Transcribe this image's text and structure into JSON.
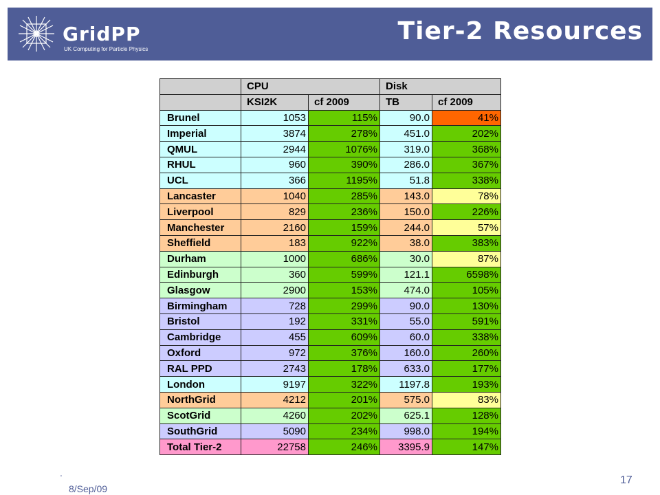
{
  "header": {
    "logo_name": "GridPP",
    "logo_subtitle": "UK Computing for Particle Physics",
    "title": "Tier-2 Resources"
  },
  "table": {
    "group_headers": [
      "CPU",
      "Disk"
    ],
    "sub_headers": [
      "KSI2K",
      "cf 2009",
      "TB",
      "cf 2009"
    ],
    "colors": {
      "cyan": "#ccffff",
      "orange": "#ffcc99",
      "mint": "#ccffcc",
      "lavender": "#ccccff",
      "pink": "#ff99cc",
      "green": "#66cc00",
      "yellow": "#ffff99",
      "red": "#ff6600",
      "header": "#d0d0d0"
    },
    "rows": [
      {
        "site": "Brunel",
        "ksi2k": "1053",
        "cpu_cf": "115%",
        "tb": "90.0",
        "disk_cf": "41%",
        "row_color": "cyan",
        "cpu_cf_color": "green",
        "disk_cf_color": "red"
      },
      {
        "site": "Imperial",
        "ksi2k": "3874",
        "cpu_cf": "278%",
        "tb": "451.0",
        "disk_cf": "202%",
        "row_color": "cyan",
        "cpu_cf_color": "green",
        "disk_cf_color": "green"
      },
      {
        "site": "QMUL",
        "ksi2k": "2944",
        "cpu_cf": "1076%",
        "tb": "319.0",
        "disk_cf": "368%",
        "row_color": "cyan",
        "cpu_cf_color": "green",
        "disk_cf_color": "green"
      },
      {
        "site": "RHUL",
        "ksi2k": "960",
        "cpu_cf": "390%",
        "tb": "286.0",
        "disk_cf": "367%",
        "row_color": "cyan",
        "cpu_cf_color": "green",
        "disk_cf_color": "green"
      },
      {
        "site": "UCL",
        "ksi2k": "366",
        "cpu_cf": "1195%",
        "tb": "51.8",
        "disk_cf": "338%",
        "row_color": "cyan",
        "cpu_cf_color": "green",
        "disk_cf_color": "green"
      },
      {
        "site": "Lancaster",
        "ksi2k": "1040",
        "cpu_cf": "285%",
        "tb": "143.0",
        "disk_cf": "78%",
        "row_color": "orange",
        "cpu_cf_color": "green",
        "disk_cf_color": "yellow"
      },
      {
        "site": "Liverpool",
        "ksi2k": "829",
        "cpu_cf": "236%",
        "tb": "150.0",
        "disk_cf": "226%",
        "row_color": "orange",
        "cpu_cf_color": "green",
        "disk_cf_color": "green"
      },
      {
        "site": "Manchester",
        "ksi2k": "2160",
        "cpu_cf": "159%",
        "tb": "244.0",
        "disk_cf": "57%",
        "row_color": "orange",
        "cpu_cf_color": "green",
        "disk_cf_color": "yellow"
      },
      {
        "site": "Sheffield",
        "ksi2k": "183",
        "cpu_cf": "922%",
        "tb": "38.0",
        "disk_cf": "383%",
        "row_color": "orange",
        "cpu_cf_color": "green",
        "disk_cf_color": "green"
      },
      {
        "site": "Durham",
        "ksi2k": "1000",
        "cpu_cf": "686%",
        "tb": "30.0",
        "disk_cf": "87%",
        "row_color": "mint",
        "cpu_cf_color": "green",
        "disk_cf_color": "yellow"
      },
      {
        "site": "Edinburgh",
        "ksi2k": "360",
        "cpu_cf": "599%",
        "tb": "121.1",
        "disk_cf": "6598%",
        "row_color": "mint",
        "cpu_cf_color": "green",
        "disk_cf_color": "green"
      },
      {
        "site": "Glasgow",
        "ksi2k": "2900",
        "cpu_cf": "153%",
        "tb": "474.0",
        "disk_cf": "105%",
        "row_color": "mint",
        "cpu_cf_color": "green",
        "disk_cf_color": "green"
      },
      {
        "site": "Birmingham",
        "ksi2k": "728",
        "cpu_cf": "299%",
        "tb": "90.0",
        "disk_cf": "130%",
        "row_color": "lavender",
        "cpu_cf_color": "green",
        "disk_cf_color": "green"
      },
      {
        "site": "Bristol",
        "ksi2k": "192",
        "cpu_cf": "331%",
        "tb": "55.0",
        "disk_cf": "591%",
        "row_color": "lavender",
        "cpu_cf_color": "green",
        "disk_cf_color": "green"
      },
      {
        "site": "Cambridge",
        "ksi2k": "455",
        "cpu_cf": "609%",
        "tb": "60.0",
        "disk_cf": "338%",
        "row_color": "lavender",
        "cpu_cf_color": "green",
        "disk_cf_color": "green"
      },
      {
        "site": "Oxford",
        "ksi2k": "972",
        "cpu_cf": "376%",
        "tb": "160.0",
        "disk_cf": "260%",
        "row_color": "lavender",
        "cpu_cf_color": "green",
        "disk_cf_color": "green"
      },
      {
        "site": "RAL PPD",
        "ksi2k": "2743",
        "cpu_cf": "178%",
        "tb": "633.0",
        "disk_cf": "177%",
        "row_color": "lavender",
        "cpu_cf_color": "green",
        "disk_cf_color": "green"
      },
      {
        "site": "London",
        "ksi2k": "9197",
        "cpu_cf": "322%",
        "tb": "1197.8",
        "disk_cf": "193%",
        "row_color": "cyan",
        "cpu_cf_color": "green",
        "disk_cf_color": "green"
      },
      {
        "site": "NorthGrid",
        "ksi2k": "4212",
        "cpu_cf": "201%",
        "tb": "575.0",
        "disk_cf": "83%",
        "row_color": "orange",
        "cpu_cf_color": "green",
        "disk_cf_color": "yellow"
      },
      {
        "site": "ScotGrid",
        "ksi2k": "4260",
        "cpu_cf": "202%",
        "tb": "625.1",
        "disk_cf": "128%",
        "row_color": "mint",
        "cpu_cf_color": "green",
        "disk_cf_color": "green"
      },
      {
        "site": "SouthGrid",
        "ksi2k": "5090",
        "cpu_cf": "234%",
        "tb": "998.0",
        "disk_cf": "194%",
        "row_color": "lavender",
        "cpu_cf_color": "green",
        "disk_cf_color": "green"
      },
      {
        "site": "Total Tier-2",
        "ksi2k": "22758",
        "cpu_cf": "246%",
        "tb": "3395.9",
        "disk_cf": "147%",
        "row_color": "pink",
        "cpu_cf_color": "green",
        "disk_cf_color": "green"
      }
    ]
  },
  "footer": {
    "date": "8/Sep/09",
    "tick": "'",
    "page_number": "17"
  }
}
